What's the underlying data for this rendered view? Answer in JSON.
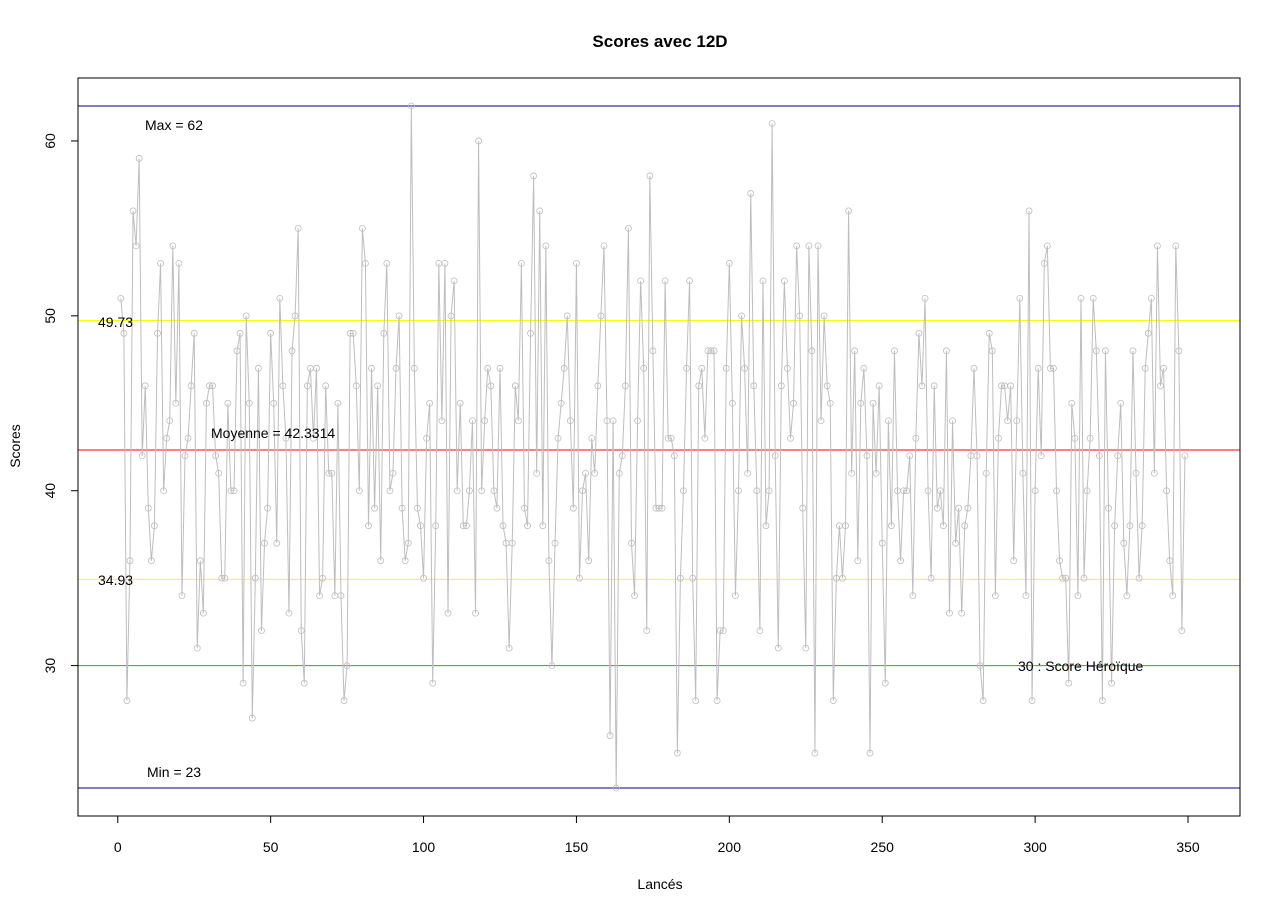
{
  "chart_data": {
    "type": "line",
    "title": "Scores avec 12D",
    "xlabel": "Lancés",
    "ylabel": "Scores",
    "xlim": [
      -13,
      367
    ],
    "ylim": [
      21.4,
      63.6
    ],
    "x_ticks": [
      0,
      50,
      100,
      150,
      200,
      250,
      300,
      350
    ],
    "y_ticks": [
      30,
      40,
      50,
      60
    ],
    "grid": false,
    "legend": "none",
    "series": [
      {
        "color": "#bebebe",
        "marker": "open-circle",
        "values": [
          51,
          49,
          28,
          36,
          56,
          54,
          59,
          42,
          46,
          39,
          36,
          38,
          49,
          53,
          40,
          43,
          44,
          54,
          45,
          53,
          34,
          42,
          43,
          46,
          49,
          31,
          36,
          33,
          45,
          46,
          46,
          42,
          41,
          35,
          35,
          45,
          40,
          40,
          48,
          49,
          29,
          50,
          45,
          27,
          35,
          47,
          32,
          37,
          39,
          49,
          45,
          37,
          51,
          46,
          43,
          33,
          48,
          50,
          55,
          32,
          29,
          46,
          47,
          43,
          47,
          34,
          35,
          46,
          41,
          41,
          34,
          45,
          34,
          28,
          30,
          49,
          49,
          46,
          40,
          55,
          53,
          38,
          47,
          39,
          46,
          36,
          49,
          53,
          40,
          41,
          47,
          50,
          39,
          36,
          37,
          62,
          47,
          39,
          38,
          35,
          43,
          45,
          29,
          38,
          53,
          44,
          53,
          33,
          50,
          52,
          40,
          45,
          38,
          38,
          40,
          44,
          33,
          60,
          40,
          44,
          47,
          46,
          40,
          39,
          47,
          38,
          37,
          31,
          37,
          46,
          44,
          53,
          39,
          38,
          49,
          58,
          41,
          56,
          38,
          54,
          36,
          30,
          37,
          43,
          45,
          47,
          50,
          44,
          39,
          53,
          35,
          40,
          41,
          36,
          43,
          41,
          46,
          50,
          54,
          44,
          26,
          44,
          23,
          41,
          42,
          46,
          55,
          37,
          34,
          44,
          52,
          47,
          32,
          58,
          48,
          39,
          39,
          39,
          52,
          43,
          43,
          42,
          25,
          35,
          40,
          47,
          52,
          35,
          28,
          46,
          47,
          43,
          48,
          48,
          48,
          28,
          32,
          32,
          47,
          53,
          45,
          34,
          40,
          50,
          47,
          41,
          57,
          46,
          40,
          32,
          52,
          38,
          40,
          61,
          42,
          31,
          46,
          52,
          47,
          43,
          45,
          54,
          50,
          39,
          31,
          54,
          48,
          25,
          54,
          44,
          50,
          46,
          45,
          28,
          35,
          38,
          35,
          38,
          56,
          41,
          48,
          36,
          45,
          47,
          42,
          25,
          45,
          41,
          46,
          37,
          29,
          44,
          38,
          48,
          40,
          36,
          40,
          40,
          42,
          34,
          43,
          49,
          46,
          51,
          40,
          35,
          46,
          39,
          40,
          38,
          48,
          33,
          44,
          37,
          39,
          33,
          38,
          39,
          42,
          47,
          42,
          30,
          28,
          41,
          49,
          48,
          34,
          43,
          46,
          46,
          44,
          46,
          36,
          44,
          51,
          41,
          34,
          56,
          28,
          40,
          47,
          42,
          53,
          54,
          47,
          47,
          40,
          36,
          35,
          35,
          29,
          45,
          43,
          34,
          51,
          35,
          40,
          43,
          51,
          48,
          42,
          28,
          48,
          39,
          29,
          38,
          42,
          45,
          37,
          34,
          38,
          48,
          41,
          35,
          38,
          47,
          49,
          51,
          41,
          54,
          46,
          47,
          40,
          36,
          34,
          54,
          48,
          32,
          42
        ]
      }
    ],
    "reference_lines": [
      {
        "y": 62,
        "color": "#000080"
      },
      {
        "y": 23,
        "color": "#000080"
      },
      {
        "y": 49.73,
        "color": "#ffff00"
      },
      {
        "y": 34.93,
        "color": "#ffff00"
      },
      {
        "y": 42.3314,
        "color": "#ff0000"
      },
      {
        "y": 30,
        "color": "#00cc00"
      }
    ],
    "annotations": {
      "max": "Max =  62",
      "min": "Min =  23",
      "upper": "49.73",
      "lower": "34.93",
      "mean": "Moyenne =  42.3314",
      "heroic": "30 : Score Héroïque"
    }
  }
}
